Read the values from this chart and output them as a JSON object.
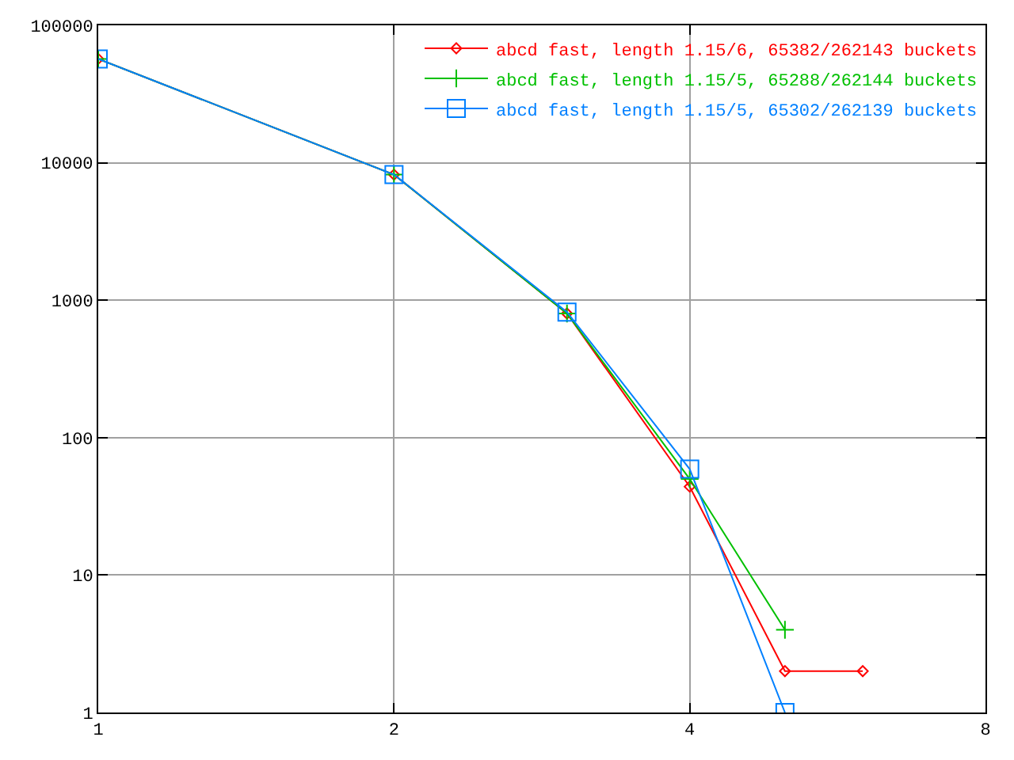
{
  "chart_data": {
    "type": "line",
    "x": [
      1,
      2,
      3,
      4,
      5,
      6
    ],
    "series": [
      {
        "name": "abcd fast, length 1.15/6, 65382/262143 buckets",
        "color": "#ff0000",
        "marker": "diamond",
        "values": [
          57000,
          8200,
          800,
          44,
          2,
          2
        ]
      },
      {
        "name": "abcd fast, length 1.15/5, 65288/262144 buckets",
        "color": "#00c000",
        "marker": "cross",
        "values": [
          57000,
          8200,
          800,
          50,
          4,
          null
        ]
      },
      {
        "name": "abcd fast, length 1.15/5, 65302/262139 buckets",
        "color": "#0080ff",
        "marker": "square",
        "values": [
          57000,
          8200,
          820,
          59,
          1,
          null
        ]
      }
    ],
    "log": "xy",
    "xlim": [
      1,
      8
    ],
    "ylim": [
      1,
      100000
    ],
    "xticks": [
      1,
      2,
      4,
      8
    ],
    "yticks": [
      1,
      10,
      100,
      1000,
      10000,
      100000
    ],
    "grid": true,
    "legend": "top right"
  }
}
